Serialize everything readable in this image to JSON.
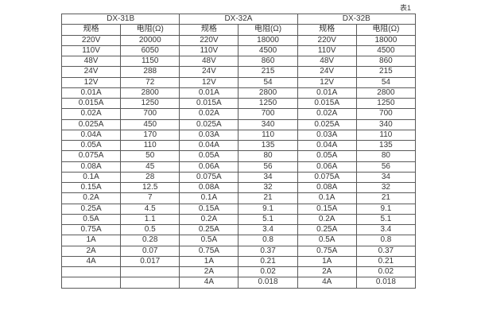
{
  "caption": "表1",
  "colors": {
    "background": "#ffffff",
    "border": "#5a5a5a",
    "text": "#363636"
  },
  "table": {
    "groups": [
      {
        "model": "DX-31B",
        "columns": [
          "规格",
          "电阻(Ω)"
        ]
      },
      {
        "model": "DX-32A",
        "columns": [
          "规格",
          "电阻(Ω)"
        ]
      },
      {
        "model": "DX-32B",
        "columns": [
          "规格",
          "电阻(Ω)"
        ]
      }
    ],
    "rows": [
      [
        "220V",
        "20000",
        "220V",
        "18000",
        "220V",
        "18000"
      ],
      [
        "110V",
        "6050",
        "110V",
        "4500",
        "110V",
        "4500"
      ],
      [
        "48V",
        "1150",
        "48V",
        "860",
        "48V",
        "860"
      ],
      [
        "24V",
        "288",
        "24V",
        "215",
        "24V",
        "215"
      ],
      [
        "12V",
        "72",
        "12V",
        "54",
        "12V",
        "54"
      ],
      [
        "0.01A",
        "2800",
        "0.01A",
        "2800",
        "0.01A",
        "2800"
      ],
      [
        "0.015A",
        "1250",
        "0.015A",
        "1250",
        "0.015A",
        "1250"
      ],
      [
        "0.02A",
        "700",
        "0.02A",
        "700",
        "0.02A",
        "700"
      ],
      [
        "0.025A",
        "450",
        "0.025A",
        "340",
        "0.025A",
        "340"
      ],
      [
        "0.04A",
        "170",
        "0.03A",
        "110",
        "0.03A",
        "110"
      ],
      [
        "0.05A",
        "110",
        "0.04A",
        "135",
        "0.04A",
        "135"
      ],
      [
        "0.075A",
        "50",
        "0.05A",
        "80",
        "0.05A",
        "80"
      ],
      [
        "0.08A",
        "45",
        "0.06A",
        "56",
        "0.06A",
        "56"
      ],
      [
        "0.1A",
        "28",
        "0.075A",
        "34",
        "0.075A",
        "34"
      ],
      [
        "0.15A",
        "12.5",
        "0.08A",
        "32",
        "0.08A",
        "32"
      ],
      [
        "0.2A",
        "7",
        "0.1A",
        "21",
        "0.1A",
        "21"
      ],
      [
        "0.25A",
        "4.5",
        "0.15A",
        "9.1",
        "0.15A",
        "9.1"
      ],
      [
        "0.5A",
        "1.1",
        "0.2A",
        "5.1",
        "0.2A",
        "5.1"
      ],
      [
        "0.75A",
        "0.5",
        "0.25A",
        "3.4",
        "0.25A",
        "3.4"
      ],
      [
        "1A",
        "0.28",
        "0.5A",
        "0.8",
        "0.5A",
        "0.8"
      ],
      [
        "2A",
        "0.07",
        "0.75A",
        "0.37",
        "0.75A",
        "0.37"
      ],
      [
        "4A",
        "0.017",
        "1A",
        "0.21",
        "1A",
        "0.21"
      ],
      [
        "",
        "",
        "2A",
        "0.02",
        "2A",
        "0.02"
      ],
      [
        "",
        "",
        "4A",
        "0.018",
        "4A",
        "0.018"
      ]
    ]
  }
}
